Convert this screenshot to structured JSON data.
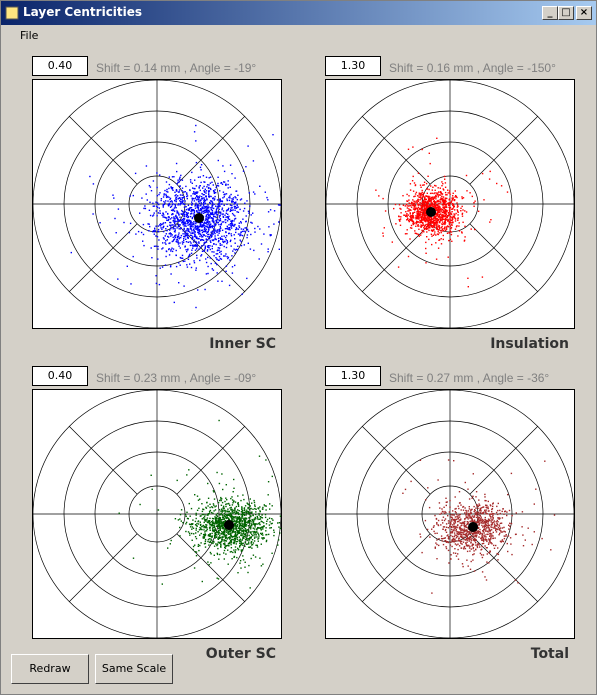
{
  "window": {
    "title": "Layer Centricities",
    "menu": [
      "File"
    ]
  },
  "panels": [
    {
      "scale": "0.40",
      "info": "Shift = 0.14 mm , Angle = -19°",
      "label": "Inner SC"
    },
    {
      "scale": "1.30",
      "info": "Shift = 0.16 mm , Angle = -150°",
      "label": "Insulation"
    },
    {
      "scale": "0.40",
      "info": "Shift = 0.23 mm , Angle = -09°",
      "label": "Outer SC"
    },
    {
      "scale": "1.30",
      "info": "Shift = 0.27 mm , Angle = -36°",
      "label": "Total"
    }
  ],
  "buttons": [
    "Redraw",
    "Same Scale"
  ]
}
